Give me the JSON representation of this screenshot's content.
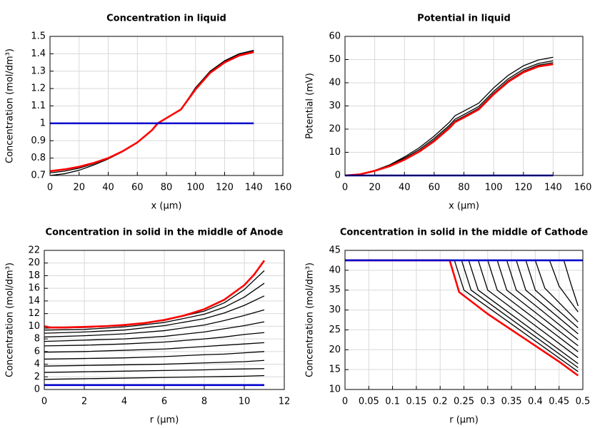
{
  "chart_data": [
    {
      "type": "line",
      "title": "Concentration in liquid",
      "xlabel": "x (µm)",
      "ylabel": "Concentration (mol/dm³)",
      "xlim": [
        0,
        160
      ],
      "xticks": [
        0,
        20,
        40,
        60,
        80,
        100,
        120,
        140,
        160
      ],
      "ylim": [
        0.7,
        1.5
      ],
      "yticks": [
        0.7,
        0.8,
        0.9,
        1,
        1.1,
        1.2,
        1.3,
        1.4,
        1.5
      ],
      "grid": true,
      "series": [
        {
          "color": "#000000",
          "x": [
            0,
            10,
            20,
            30,
            40,
            50,
            60,
            70,
            74,
            80,
            90,
            100,
            110,
            120,
            130,
            140
          ],
          "values": [
            0.7,
            0.71,
            0.73,
            0.76,
            0.795,
            0.837,
            0.888,
            0.96,
            1.0,
            1.03,
            1.08,
            1.205,
            1.3,
            1.36,
            1.4,
            1.42
          ]
        },
        {
          "color": "#000000",
          "x": [
            0,
            10,
            20,
            30,
            40,
            50,
            60,
            70,
            74,
            80,
            90,
            100,
            110,
            120,
            130,
            140
          ],
          "values": [
            0.715,
            0.725,
            0.742,
            0.767,
            0.8,
            0.84,
            0.89,
            0.96,
            1.0,
            1.03,
            1.08,
            1.2,
            1.295,
            1.355,
            1.395,
            1.415
          ]
        },
        {
          "color": "#ff0000",
          "x": [
            0,
            10,
            20,
            30,
            40,
            50,
            60,
            70,
            74,
            80,
            90,
            100,
            110,
            120,
            130,
            140
          ],
          "values": [
            0.725,
            0.735,
            0.75,
            0.772,
            0.8,
            0.84,
            0.89,
            0.96,
            1.0,
            1.03,
            1.08,
            1.195,
            1.29,
            1.35,
            1.39,
            1.41
          ]
        },
        {
          "color": "#0000cc",
          "x": [
            0,
            140
          ],
          "values": [
            1,
            1
          ]
        }
      ]
    },
    {
      "type": "line",
      "title": "Potential in liquid",
      "xlabel": "x (µm)",
      "ylabel": "Potential (mV)",
      "xlim": [
        0,
        160
      ],
      "xticks": [
        0,
        20,
        40,
        60,
        80,
        100,
        120,
        140,
        160
      ],
      "ylim": [
        0,
        60
      ],
      "yticks": [
        0,
        10,
        20,
        30,
        40,
        50,
        60
      ],
      "grid": true,
      "series": [
        {
          "color": "#000000",
          "x": [
            0,
            10,
            20,
            30,
            40,
            50,
            60,
            70,
            74,
            80,
            90,
            100,
            110,
            120,
            130,
            140
          ],
          "values": [
            0,
            0.6,
            2.2,
            4.6,
            8,
            12,
            17,
            22.8,
            25.8,
            27.8,
            31.2,
            37.8,
            43.3,
            47.3,
            49.8,
            51
          ]
        },
        {
          "color": "#000000",
          "x": [
            0,
            10,
            20,
            30,
            40,
            50,
            60,
            70,
            74,
            80,
            90,
            100,
            110,
            120,
            130,
            140
          ],
          "values": [
            0,
            0.55,
            2.1,
            4.3,
            7.5,
            11.2,
            16,
            21.5,
            24.3,
            26.3,
            29.8,
            36.3,
            41.8,
            45.8,
            48.3,
            49.5
          ]
        },
        {
          "color": "#000000",
          "x": [
            0,
            10,
            20,
            30,
            40,
            50,
            60,
            70,
            74,
            80,
            90,
            100,
            110,
            120,
            130,
            140
          ],
          "values": [
            0,
            0.5,
            2,
            4,
            7,
            10.6,
            15.3,
            20.8,
            23.5,
            25.5,
            29,
            35.5,
            41,
            45,
            47.6,
            48.7
          ]
        },
        {
          "color": "#ff0000",
          "x": [
            0,
            10,
            20,
            30,
            40,
            50,
            60,
            70,
            74,
            80,
            90,
            100,
            110,
            120,
            130,
            140
          ],
          "values": [
            0,
            0.5,
            2,
            4,
            6.8,
            10.3,
            14.8,
            20.3,
            23,
            25,
            28.5,
            35,
            40.5,
            44.5,
            47,
            48
          ]
        },
        {
          "color": "#0000cc",
          "x": [
            0,
            140
          ],
          "values": [
            0,
            0
          ]
        }
      ]
    },
    {
      "type": "line",
      "title": "Concentration in solid in the middle of Anode",
      "xlabel": "r (µm)",
      "ylabel": "Concentration (mol/dm³)",
      "xlim": [
        0,
        12
      ],
      "xticks": [
        0,
        2,
        4,
        6,
        8,
        10,
        12
      ],
      "ylim": [
        0,
        22
      ],
      "yticks": [
        0,
        2,
        4,
        6,
        8,
        10,
        12,
        14,
        16,
        18,
        20,
        22
      ],
      "grid": true,
      "series": [
        {
          "color": "#000000",
          "x": [
            0,
            2,
            4,
            6,
            8,
            9,
            10,
            11
          ],
          "values": [
            1.6,
            1.7,
            1.8,
            1.9,
            2.0,
            2.05,
            2.1,
            2.2
          ]
        },
        {
          "color": "#000000",
          "x": [
            0,
            2,
            4,
            6,
            8,
            9,
            10,
            11
          ],
          "values": [
            2.7,
            2.8,
            2.9,
            3.0,
            3.1,
            3.2,
            3.25,
            3.3
          ]
        },
        {
          "color": "#000000",
          "x": [
            0,
            2,
            4,
            6,
            8,
            9,
            10,
            11
          ],
          "values": [
            3.7,
            3.8,
            3.9,
            4.0,
            4.2,
            4.3,
            4.4,
            4.6
          ]
        },
        {
          "color": "#000000",
          "x": [
            0,
            2,
            4,
            6,
            8,
            9,
            10,
            11
          ],
          "values": [
            4.8,
            4.9,
            5.0,
            5.2,
            5.5,
            5.6,
            5.8,
            6.0
          ]
        },
        {
          "color": "#000000",
          "x": [
            0,
            2,
            4,
            6,
            8,
            9,
            10,
            11
          ],
          "values": [
            5.9,
            6.0,
            6.2,
            6.4,
            6.8,
            7.0,
            7.2,
            7.4
          ]
        },
        {
          "color": "#000000",
          "x": [
            0,
            2,
            4,
            6,
            8,
            9,
            10,
            11
          ],
          "values": [
            6.9,
            7.0,
            7.2,
            7.5,
            8.0,
            8.3,
            8.7,
            9.0
          ]
        },
        {
          "color": "#000000",
          "x": [
            0,
            2,
            4,
            6,
            8,
            9,
            10,
            11
          ],
          "values": [
            7.6,
            7.8,
            8.0,
            8.4,
            9.1,
            9.6,
            10.1,
            10.7
          ]
        },
        {
          "color": "#000000",
          "x": [
            0,
            2,
            4,
            6,
            8,
            9,
            10,
            11
          ],
          "values": [
            8.3,
            8.5,
            8.8,
            9.3,
            10.2,
            10.9,
            11.7,
            12.6
          ]
        },
        {
          "color": "#000000",
          "x": [
            0,
            2,
            4,
            6,
            8,
            9,
            10,
            11
          ],
          "values": [
            8.9,
            9.1,
            9.4,
            10.1,
            11.2,
            12.1,
            13.3,
            14.8
          ]
        },
        {
          "color": "#000000",
          "x": [
            0,
            2,
            4,
            6,
            8,
            9,
            10,
            11
          ],
          "values": [
            9.4,
            9.5,
            9.9,
            10.6,
            11.9,
            13.0,
            14.6,
            16.8
          ]
        },
        {
          "color": "#000000",
          "x": [
            0,
            2,
            4,
            6,
            8,
            9,
            10,
            11
          ],
          "values": [
            9.7,
            9.8,
            10.1,
            10.9,
            12.4,
            13.7,
            15.8,
            18.8
          ]
        },
        {
          "color": "#ff0000",
          "x": [
            0,
            0.3,
            1,
            2,
            3,
            4,
            5,
            6,
            7,
            8,
            9,
            10,
            10.5,
            11
          ],
          "values": [
            10,
            9.8,
            9.8,
            9.9,
            10,
            10.2,
            10.5,
            11,
            11.7,
            12.7,
            14.2,
            16.5,
            18.2,
            20.4
          ]
        },
        {
          "color": "#0000cc",
          "x": [
            0,
            11
          ],
          "values": [
            0.7,
            0.7
          ]
        }
      ]
    },
    {
      "type": "line",
      "title": "Concentration in solid in the middle of Cathode",
      "xlabel": "r (µm)",
      "ylabel": "Concentration (mol/dm³)",
      "xlim": [
        0,
        0.5
      ],
      "xticks": [
        0,
        0.05,
        0.1,
        0.15,
        0.2,
        0.25,
        0.3,
        0.35,
        0.4,
        0.45,
        0.5
      ],
      "ylim": [
        10,
        45
      ],
      "yticks": [
        10,
        15,
        20,
        25,
        30,
        35,
        40,
        45
      ],
      "grid": true,
      "series": [
        {
          "color": "#000000",
          "x": [
            0,
            0.23,
            0.25,
            0.49
          ],
          "values": [
            42.5,
            42.5,
            35,
            14.5
          ]
        },
        {
          "color": "#000000",
          "x": [
            0,
            0.245,
            0.265,
            0.49
          ],
          "values": [
            42.5,
            42.5,
            35,
            15.5
          ]
        },
        {
          "color": "#000000",
          "x": [
            0,
            0.26,
            0.28,
            0.49
          ],
          "values": [
            42.5,
            42.5,
            35,
            16.5
          ]
        },
        {
          "color": "#000000",
          "x": [
            0,
            0.28,
            0.3,
            0.49
          ],
          "values": [
            42.5,
            42.5,
            35,
            18
          ]
        },
        {
          "color": "#000000",
          "x": [
            0,
            0.3,
            0.32,
            0.49
          ],
          "values": [
            42.5,
            42.5,
            35,
            19.5
          ]
        },
        {
          "color": "#000000",
          "x": [
            0,
            0.32,
            0.34,
            0.49
          ],
          "values": [
            42.5,
            42.5,
            35,
            21
          ]
        },
        {
          "color": "#000000",
          "x": [
            0,
            0.34,
            0.36,
            0.49
          ],
          "values": [
            42.5,
            42.5,
            35,
            22.5
          ]
        },
        {
          "color": "#000000",
          "x": [
            0,
            0.36,
            0.38,
            0.49
          ],
          "values": [
            42.5,
            42.5,
            35,
            24
          ]
        },
        {
          "color": "#000000",
          "x": [
            0,
            0.38,
            0.4,
            0.49
          ],
          "values": [
            42.5,
            42.5,
            35,
            25.5
          ]
        },
        {
          "color": "#000000",
          "x": [
            0,
            0.4,
            0.42,
            0.49
          ],
          "values": [
            42.5,
            42.5,
            35.5,
            27
          ]
        },
        {
          "color": "#000000",
          "x": [
            0,
            0.43,
            0.45,
            0.49
          ],
          "values": [
            42.5,
            42.5,
            36,
            29.5
          ]
        },
        {
          "color": "#000000",
          "x": [
            0,
            0.46,
            0.475,
            0.49
          ],
          "values": [
            42.5,
            42.5,
            36.5,
            31
          ]
        },
        {
          "color": "#ff0000",
          "x": [
            0,
            0.22,
            0.24,
            0.3,
            0.35,
            0.4,
            0.45,
            0.49
          ],
          "values": [
            42.5,
            42.5,
            34.5,
            29,
            25,
            21,
            17,
            13.5
          ]
        },
        {
          "color": "#0000cc",
          "x": [
            0,
            0.5
          ],
          "values": [
            42.5,
            42.5
          ]
        }
      ]
    }
  ]
}
